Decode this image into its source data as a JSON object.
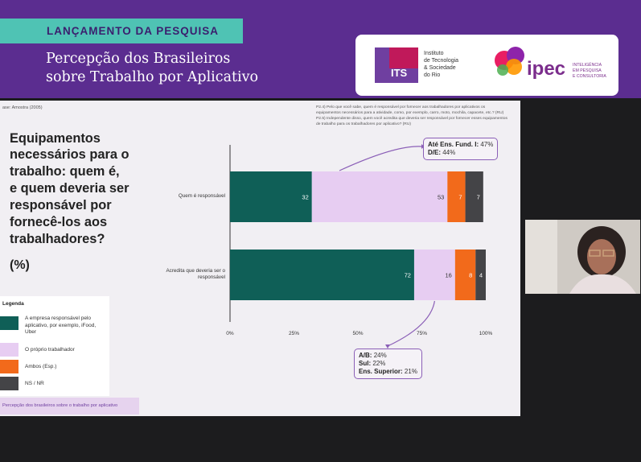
{
  "banner": {
    "tagline": "LANÇAMENTO DA PESQUISA",
    "title_line1": "Percepção dos Brasileiros",
    "title_line2": "sobre Trabalho por Aplicativo"
  },
  "logos": {
    "its_mark": "ITS",
    "its_lines": [
      "Instituto",
      "de Tecnologia",
      "& Sociedade",
      "do Rio"
    ],
    "ipec_mark": "ipec",
    "ipec_lines": [
      "INTELIGÊNCIA",
      "EM PESQUISA",
      "E CONSULTORIA"
    ]
  },
  "slide": {
    "source_note": "ase: Amostra (2005)",
    "question_notes": [
      "P2.4) Pelo que você sabe, quem é responsável por fornecer aos trabalhadores por aplicativos os",
      "equipamentos necessários para a atividade, como, por exemplo, carro, moto, mochila, capacete, etc.? (RU)",
      "P2.5) Independente disso, quem você acredita que deveria ser responsável por fornecer esses equipamentos",
      "de trabalho para os trabalhadores por aplicativo? (RU)"
    ],
    "title_lines": [
      "Equipamentos",
      "necessários para o",
      "trabalho: quem é,",
      "e quem deveria ser",
      "responsável por",
      "fornecê-los aos",
      "trabalhadores?"
    ],
    "unit": "(%)",
    "legend_title": "Legenda",
    "legend": [
      {
        "label": "A empresa responsável pelo aplicativo, por exemplo, iFood, Uber",
        "color": "#0f5f57"
      },
      {
        "label": "O próprio trabalhador",
        "color": "#e7cdf2"
      },
      {
        "label": "Ambos (Esp.)",
        "color": "#f26a1b"
      },
      {
        "label": "NS / NR",
        "color": "#444447"
      }
    ],
    "footer": "Percepção dos brasileiros sobre o trabalho por aplicativo",
    "callout_top": [
      {
        "label": "Até Ens. Fund. I:",
        "value": "47%"
      },
      {
        "label": "D/E:",
        "value": "44%"
      }
    ],
    "callout_bottom": [
      {
        "label": "A/B:",
        "value": "24%"
      },
      {
        "label": "Sul:",
        "value": "22%"
      },
      {
        "label": "Ens. Superior:",
        "value": "21%"
      }
    ]
  },
  "chart_data": {
    "type": "bar",
    "orientation": "horizontal",
    "stacked": true,
    "categories": [
      "Quem é responsável",
      "Acredita que deveria ser o responsável"
    ],
    "series": [
      {
        "name": "A empresa responsável pelo aplicativo, por exemplo, iFood, Uber",
        "values": [
          32,
          72
        ],
        "color": "#0f5f57"
      },
      {
        "name": "O próprio trabalhador",
        "values": [
          53,
          16
        ],
        "color": "#e7cdf2"
      },
      {
        "name": "Ambos (Esp.)",
        "values": [
          7,
          8
        ],
        "color": "#f26a1b"
      },
      {
        "name": "NS / NR",
        "values": [
          7,
          4
        ],
        "color": "#444447"
      }
    ],
    "xlim": [
      0,
      100
    ],
    "xticks": [
      "0%",
      "25%",
      "50%",
      "75%",
      "100%"
    ]
  }
}
